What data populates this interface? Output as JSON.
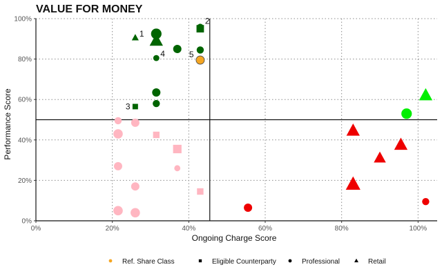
{
  "chart_data": {
    "type": "scatter",
    "title": "VALUE FOR MONEY",
    "xlabel": "Ongoing Charge Score",
    "ylabel": "Performance Score",
    "xlim": [
      0,
      1.05
    ],
    "ylim": [
      0,
      1.0
    ],
    "x_ticks": [
      0,
      0.2,
      0.4,
      0.6,
      0.8,
      1.0
    ],
    "x_tick_labels": [
      "0%",
      "20%",
      "40%",
      "60%",
      "80%",
      "100%"
    ],
    "y_ticks": [
      0,
      0.2,
      0.4,
      0.6,
      0.8,
      1.0
    ],
    "y_tick_labels": [
      "0%",
      "20%",
      "40%",
      "60%",
      "80%",
      "100%"
    ],
    "grid": "dotted",
    "divider_x": 0.455,
    "divider_y": 0.5,
    "legend_position": "bottom",
    "legend": [
      {
        "label": "Ref. Share Class",
        "shape": "circle",
        "color": "#f5a623"
      },
      {
        "label": "Eligible Counterparty",
        "shape": "square",
        "color": "#000000"
      },
      {
        "label": "Professional",
        "shape": "circle",
        "color": "#000000"
      },
      {
        "label": "Retail",
        "shape": "triangle",
        "color": "#000000"
      }
    ],
    "colors": {
      "dark_green": "#006400",
      "bright_green": "#00ee00",
      "red": "#ee0000",
      "pink": "#ffb6c1",
      "orange": "#f5a623"
    },
    "points": [
      {
        "x": 0.26,
        "y": 0.905,
        "shape": "triangle",
        "color": "dark_green",
        "size": 3,
        "label": "1"
      },
      {
        "x": 0.43,
        "y": 0.96,
        "shape": "circle",
        "color": "dark_green",
        "size": 3,
        "label": "2"
      },
      {
        "x": 0.26,
        "y": 0.565,
        "shape": "square",
        "color": "dark_green",
        "size": 3,
        "label": "3"
      },
      {
        "x": 0.315,
        "y": 0.805,
        "shape": "circle",
        "color": "dark_green",
        "size": 3,
        "label": "4"
      },
      {
        "x": 0.43,
        "y": 0.795,
        "shape": "circle",
        "color": "orange",
        "size": 5,
        "label": "5"
      },
      {
        "x": 0.315,
        "y": 0.925,
        "shape": "circle",
        "color": "dark_green",
        "size": 7
      },
      {
        "x": 0.315,
        "y": 0.89,
        "shape": "triangle",
        "color": "dark_green",
        "size": 8
      },
      {
        "x": 0.37,
        "y": 0.85,
        "shape": "circle",
        "color": "dark_green",
        "size": 5
      },
      {
        "x": 0.43,
        "y": 0.95,
        "shape": "square",
        "color": "dark_green",
        "size": 5
      },
      {
        "x": 0.43,
        "y": 0.845,
        "shape": "circle",
        "color": "dark_green",
        "size": 4
      },
      {
        "x": 0.315,
        "y": 0.635,
        "shape": "circle",
        "color": "dark_green",
        "size": 5
      },
      {
        "x": 0.315,
        "y": 0.58,
        "shape": "circle",
        "color": "dark_green",
        "size": 4
      },
      {
        "x": 0.97,
        "y": 0.53,
        "shape": "circle",
        "color": "bright_green",
        "size": 7
      },
      {
        "x": 1.02,
        "y": 0.62,
        "shape": "triangle",
        "color": "bright_green",
        "size": 8
      },
      {
        "x": 0.83,
        "y": 0.445,
        "shape": "triangle",
        "color": "red",
        "size": 8
      },
      {
        "x": 0.955,
        "y": 0.375,
        "shape": "triangle",
        "color": "red",
        "size": 8
      },
      {
        "x": 0.9,
        "y": 0.31,
        "shape": "triangle",
        "color": "red",
        "size": 7
      },
      {
        "x": 0.83,
        "y": 0.18,
        "shape": "triangle",
        "color": "red",
        "size": 9
      },
      {
        "x": 0.555,
        "y": 0.065,
        "shape": "circle",
        "color": "red",
        "size": 5
      },
      {
        "x": 1.02,
        "y": 0.095,
        "shape": "circle",
        "color": "red",
        "size": 4
      },
      {
        "x": 0.215,
        "y": 0.495,
        "shape": "circle",
        "color": "pink",
        "size": 4
      },
      {
        "x": 0.26,
        "y": 0.485,
        "shape": "circle",
        "color": "pink",
        "size": 5
      },
      {
        "x": 0.215,
        "y": 0.43,
        "shape": "circle",
        "color": "pink",
        "size": 6
      },
      {
        "x": 0.315,
        "y": 0.425,
        "shape": "square",
        "color": "pink",
        "size": 4
      },
      {
        "x": 0.37,
        "y": 0.355,
        "shape": "square",
        "color": "pink",
        "size": 6
      },
      {
        "x": 0.215,
        "y": 0.27,
        "shape": "circle",
        "color": "pink",
        "size": 5
      },
      {
        "x": 0.37,
        "y": 0.26,
        "shape": "circle",
        "color": "pink",
        "size": 3
      },
      {
        "x": 0.26,
        "y": 0.17,
        "shape": "circle",
        "color": "pink",
        "size": 5
      },
      {
        "x": 0.43,
        "y": 0.145,
        "shape": "square",
        "color": "pink",
        "size": 4
      },
      {
        "x": 0.215,
        "y": 0.05,
        "shape": "circle",
        "color": "pink",
        "size": 6
      },
      {
        "x": 0.26,
        "y": 0.04,
        "shape": "circle",
        "color": "pink",
        "size": 6
      }
    ]
  }
}
